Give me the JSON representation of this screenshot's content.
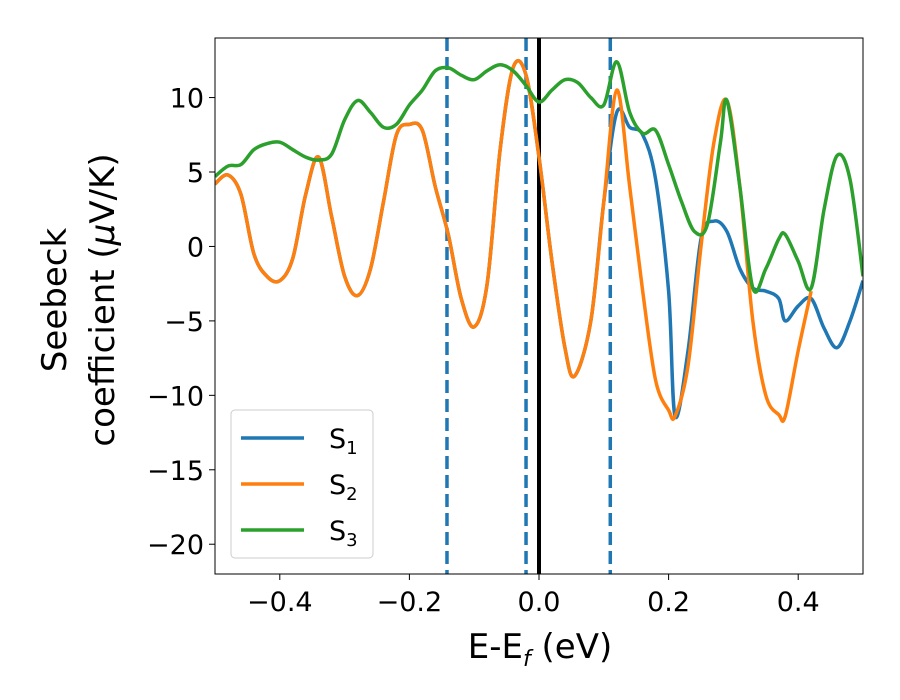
{
  "chart_data": {
    "type": "line",
    "xlabel": {
      "main": "E-E",
      "sub": "f",
      "tail": " (eV)"
    },
    "ylabel": {
      "line1": "Seebeck",
      "line2_pre": "coefficient  (",
      "line2_mu": "μ",
      "line2_post": "V/K)"
    },
    "xlim": [
      -0.5,
      0.5
    ],
    "ylim": [
      -22,
      14
    ],
    "xticks": [
      -0.4,
      -0.2,
      0.0,
      0.2,
      0.4
    ],
    "xtick_labels": [
      "−0.4",
      "−0.2",
      "0.0",
      "0.2",
      "0.4"
    ],
    "yticks": [
      10,
      5,
      0,
      -5,
      -10,
      -15,
      -20
    ],
    "ytick_labels": [
      "10",
      "5",
      "0",
      "−5",
      "−10",
      "−15",
      "−20"
    ],
    "legend_position": "lower-left",
    "vlines": [
      {
        "x": -0.142,
        "style": "dashed",
        "color": "#1f77b4"
      },
      {
        "x": -0.02,
        "style": "dashed",
        "color": "#1f77b4"
      },
      {
        "x": 0.0,
        "style": "solid",
        "color": "#000000"
      },
      {
        "x": 0.11,
        "style": "dashed",
        "color": "#1f77b4"
      }
    ],
    "series": [
      {
        "name": "S",
        "sub": "1",
        "color": "#1f77b4",
        "x": [
          -0.5,
          -0.48,
          -0.46,
          -0.44,
          -0.42,
          -0.4,
          -0.38,
          -0.36,
          -0.34,
          -0.32,
          -0.3,
          -0.28,
          -0.26,
          -0.24,
          -0.22,
          -0.2,
          -0.18,
          -0.16,
          -0.14,
          -0.12,
          -0.1,
          -0.08,
          -0.06,
          -0.04,
          -0.02,
          0.0,
          0.02,
          0.04,
          0.055,
          0.08,
          0.1,
          0.12,
          0.14,
          0.16,
          0.18,
          0.2,
          0.21,
          0.23,
          0.25,
          0.27,
          0.29,
          0.31,
          0.33,
          0.35,
          0.37,
          0.38,
          0.4,
          0.42,
          0.44,
          0.46,
          0.48,
          0.5
        ],
        "y": [
          4.2,
          4.8,
          3.5,
          -0.5,
          -2.0,
          -2.3,
          -0.8,
          3.5,
          6.0,
          2.0,
          -2.0,
          -3.3,
          -1.5,
          3.0,
          7.5,
          8.2,
          7.8,
          4.0,
          0.8,
          -3.5,
          -5.4,
          -2.5,
          6.5,
          12.0,
          11.5,
          6.0,
          -1.0,
          -6.8,
          -8.7,
          -5.0,
          3.0,
          9.0,
          8.0,
          7.5,
          4.5,
          -3.0,
          -11.4,
          -7.0,
          0.5,
          1.7,
          1.0,
          -1.5,
          -2.8,
          -3.0,
          -3.5,
          -5.0,
          -4.0,
          -3.5,
          -5.5,
          -6.8,
          -5.0,
          -2.3
        ]
      },
      {
        "name": "S",
        "sub": "2",
        "color": "#ff7f0e",
        "x": [
          -0.5,
          -0.48,
          -0.46,
          -0.44,
          -0.42,
          -0.4,
          -0.38,
          -0.36,
          -0.34,
          -0.32,
          -0.3,
          -0.28,
          -0.26,
          -0.24,
          -0.22,
          -0.2,
          -0.18,
          -0.16,
          -0.14,
          -0.12,
          -0.1,
          -0.08,
          -0.06,
          -0.04,
          -0.02,
          0.0,
          0.02,
          0.04,
          0.055,
          0.08,
          0.1,
          0.12,
          0.14,
          0.16,
          0.18,
          0.2,
          0.21,
          0.23,
          0.25,
          0.27,
          0.29,
          0.31,
          0.33,
          0.35,
          0.37,
          0.38,
          0.4,
          0.42
        ],
        "y": [
          4.2,
          4.8,
          3.5,
          -0.5,
          -2.0,
          -2.3,
          -0.8,
          3.5,
          6.0,
          2.0,
          -2.0,
          -3.3,
          -1.5,
          3.0,
          7.5,
          8.2,
          7.8,
          4.0,
          0.8,
          -3.5,
          -5.4,
          -2.5,
          6.5,
          12.0,
          11.5,
          6.0,
          -1.0,
          -6.8,
          -8.7,
          -5.0,
          3.0,
          10.5,
          4.0,
          -3.0,
          -9.0,
          -11.0,
          -11.4,
          -8.0,
          0.0,
          7.0,
          9.8,
          4.0,
          -5.0,
          -10.0,
          -11.3,
          -11.4,
          -7.0,
          -3.0
        ]
      },
      {
        "name": "S",
        "sub": "3",
        "color": "#2ca02c",
        "x": [
          -0.5,
          -0.48,
          -0.46,
          -0.44,
          -0.42,
          -0.4,
          -0.38,
          -0.36,
          -0.34,
          -0.32,
          -0.3,
          -0.28,
          -0.26,
          -0.24,
          -0.22,
          -0.2,
          -0.18,
          -0.16,
          -0.14,
          -0.12,
          -0.1,
          -0.08,
          -0.06,
          -0.04,
          -0.02,
          0.0,
          0.02,
          0.04,
          0.06,
          0.08,
          0.1,
          0.12,
          0.14,
          0.16,
          0.18,
          0.2,
          0.22,
          0.24,
          0.26,
          0.28,
          0.29,
          0.31,
          0.33,
          0.35,
          0.37,
          0.38,
          0.4,
          0.42,
          0.44,
          0.46,
          0.48,
          0.5
        ],
        "y": [
          4.7,
          5.4,
          5.5,
          6.5,
          6.9,
          7.0,
          6.5,
          6.0,
          5.8,
          6.2,
          8.5,
          9.8,
          9.0,
          8.0,
          8.2,
          9.5,
          10.5,
          11.8,
          12.0,
          11.5,
          11.2,
          11.8,
          12.2,
          11.8,
          10.8,
          9.7,
          10.5,
          11.2,
          11.0,
          10.0,
          9.5,
          12.4,
          9.0,
          7.6,
          7.8,
          5.5,
          3.0,
          1.0,
          1.5,
          7.0,
          9.8,
          4.0,
          -2.8,
          -1.5,
          0.5,
          0.8,
          -1.0,
          -2.8,
          2.5,
          6.1,
          4.5,
          -2.0
        ]
      }
    ]
  }
}
